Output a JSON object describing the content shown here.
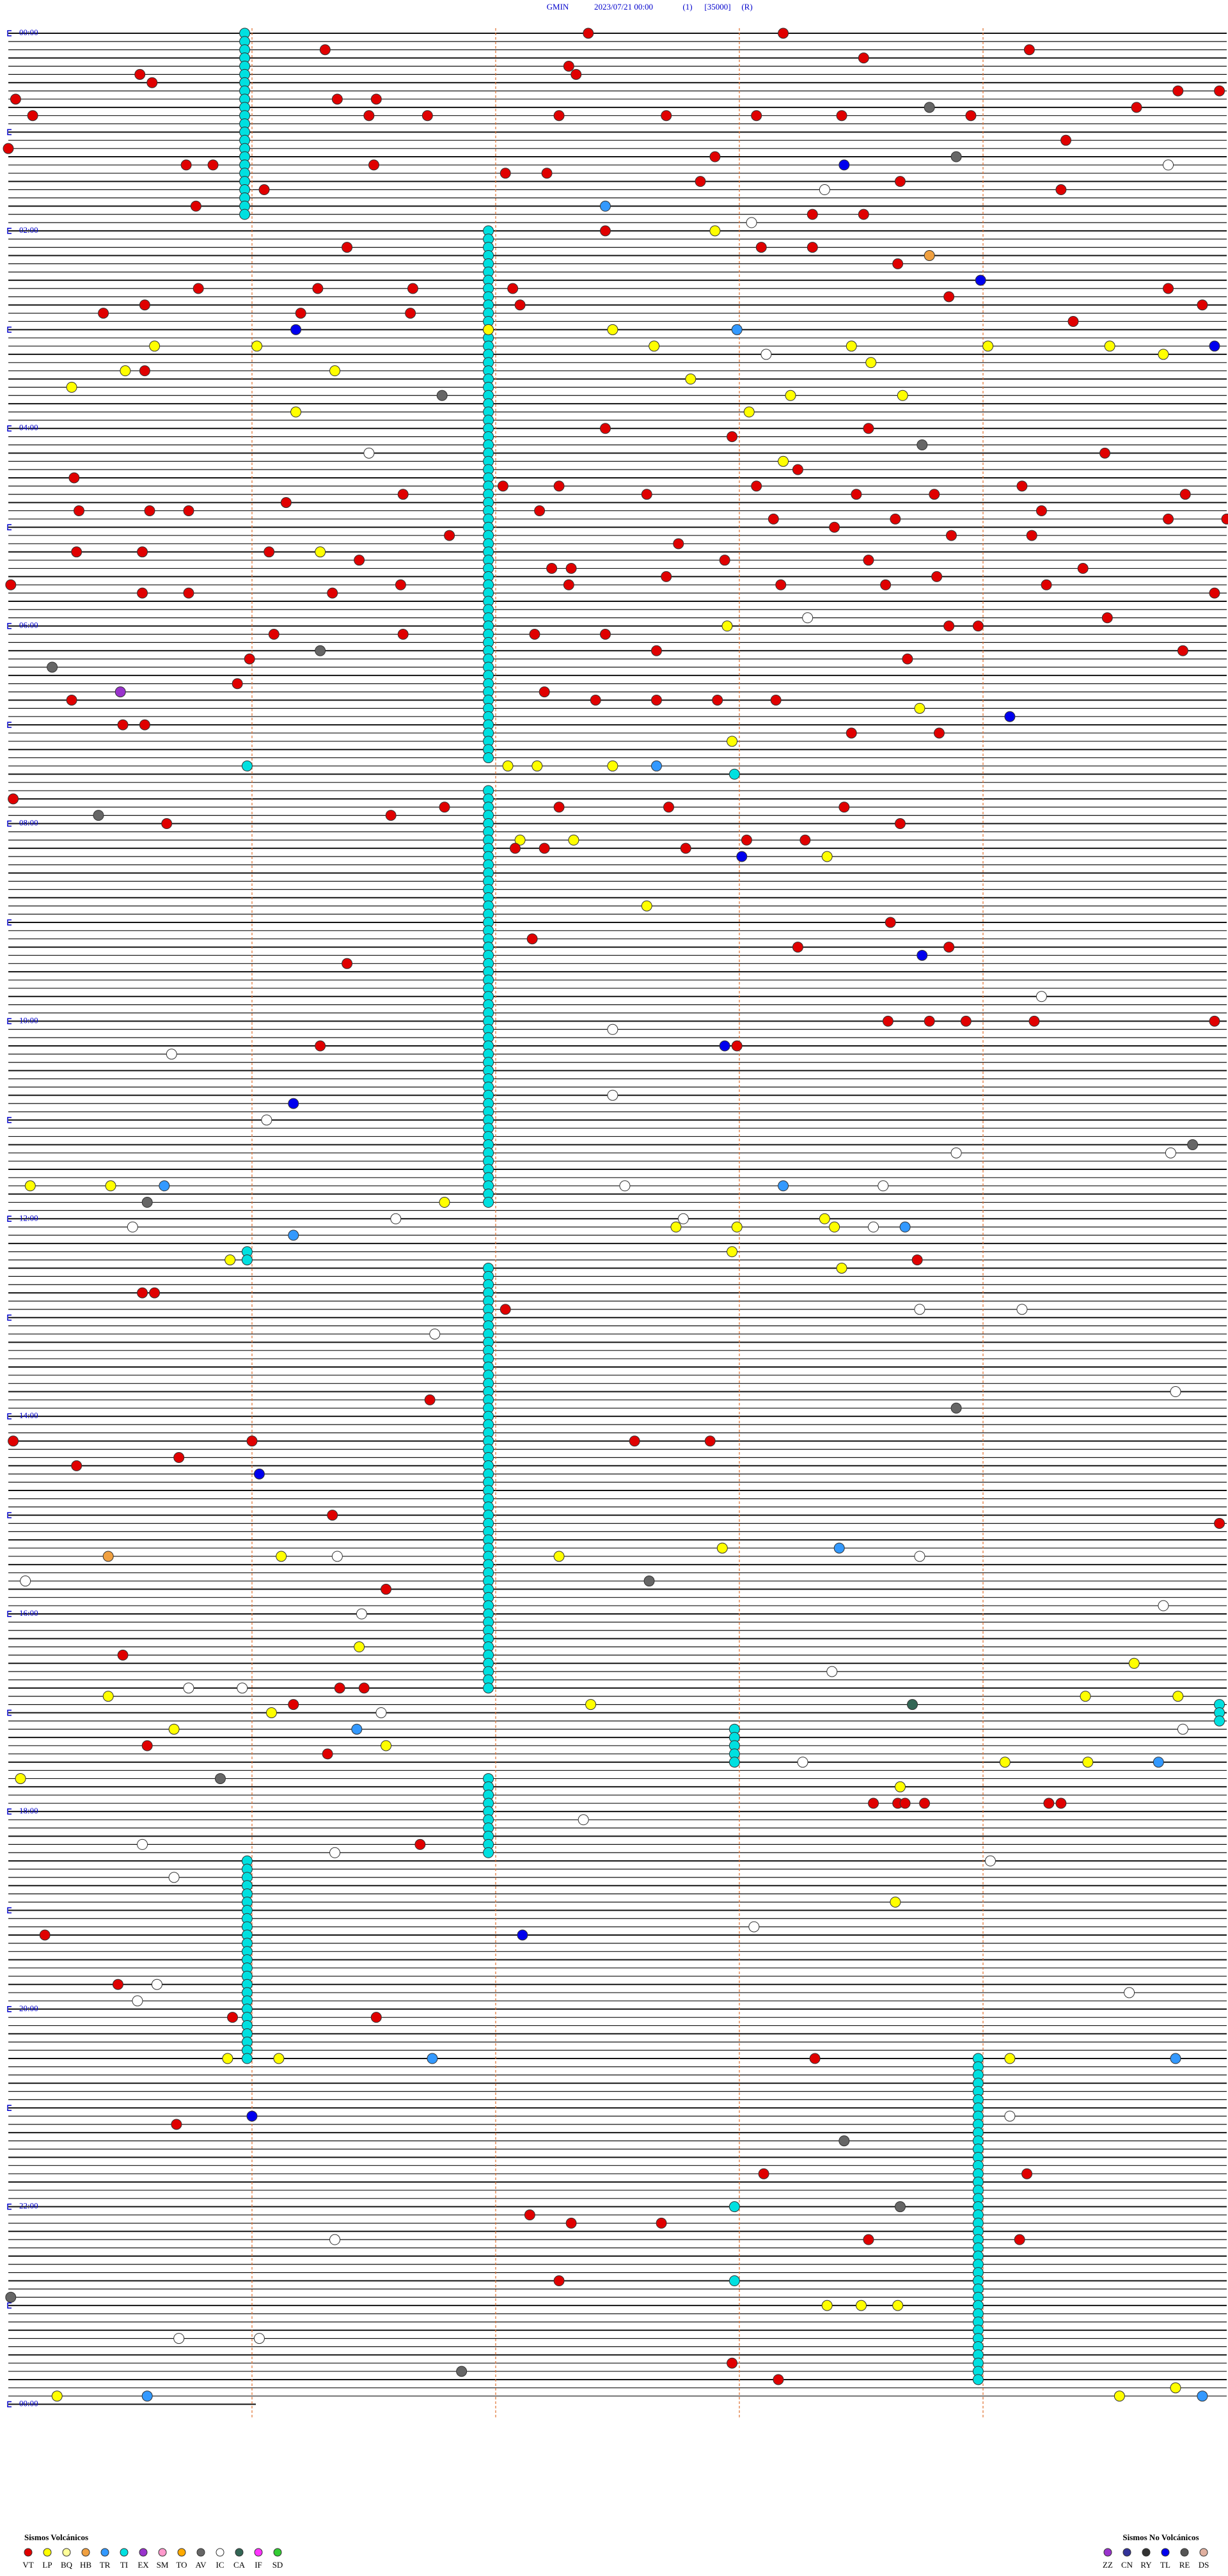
{
  "header": {
    "station": "GMIN",
    "datetime": "2023/07/21 00:00",
    "channel": "(1)",
    "scale": "[35000]",
    "mode": "(R)"
  },
  "time_labels": [
    "00:00",
    "02:00",
    "04:00",
    "06:00",
    "08:00",
    "10:00",
    "12:00",
    "14:00",
    "16:00",
    "18:00",
    "20:00",
    "22:00",
    "00:00"
  ],
  "legend_volcanic": {
    "title": "Sismos Volcánicos",
    "items": [
      [
        "VT",
        "#e00000"
      ],
      [
        "LP",
        "#ffff00"
      ],
      [
        "BQ",
        "#ffff99"
      ],
      [
        "HB",
        "#f0a040"
      ],
      [
        "TR",
        "#3399ff"
      ],
      [
        "TI",
        "#00e0e0"
      ],
      [
        "EX",
        "#9933cc"
      ],
      [
        "SM",
        "#ff99cc"
      ],
      [
        "TO",
        "#ffaa00"
      ],
      [
        "AV",
        "#666666"
      ],
      [
        "IC",
        "#ffffff"
      ],
      [
        "CA",
        "#336655"
      ],
      [
        "IF",
        "#ff33ff"
      ],
      [
        "SD",
        "#33cc33"
      ]
    ]
  },
  "legend_non_volcanic": {
    "title": "Sismos No Volcánicos",
    "items": [
      [
        "ZZ",
        "#9933cc"
      ],
      [
        "CN",
        "#333399"
      ],
      [
        "RY",
        "#333333"
      ],
      [
        "TL",
        "#0000ee"
      ],
      [
        "RE",
        "#555555"
      ],
      [
        "DS",
        "#e0b0a0"
      ]
    ]
  },
  "ti_runs": [
    [
      0,
      22,
      0.97
    ],
    [
      24,
      88,
      1.97
    ],
    [
      92,
      142,
      1.97
    ],
    [
      148,
      149,
      0.98
    ],
    [
      150,
      201,
      1.97
    ],
    [
      203,
      205,
      4.97
    ],
    [
      206,
      210,
      2.98
    ],
    [
      212,
      221,
      1.97
    ],
    [
      222,
      246,
      0.98
    ],
    [
      246,
      285,
      3.98
    ]
  ],
  "events": [
    [
      0,
      2.38,
      "VT"
    ],
    [
      0,
      3.18,
      "VT"
    ],
    [
      2,
      1.3,
      "VT"
    ],
    [
      2,
      4.19,
      "VT"
    ],
    [
      3,
      3.51,
      "VT"
    ],
    [
      4,
      2.3,
      "VT"
    ],
    [
      5,
      2.33,
      "VT"
    ],
    [
      5,
      0.54,
      "VT"
    ],
    [
      6,
      0.59,
      "VT"
    ],
    [
      8,
      0.03,
      "VT"
    ],
    [
      8,
      1.35,
      "VT"
    ],
    [
      8,
      1.51,
      "VT"
    ],
    [
      7,
      4.8,
      "VT"
    ],
    [
      7,
      4.97,
      "VT"
    ],
    [
      10,
      0.1,
      "VT"
    ],
    [
      10,
      1.48,
      "VT"
    ],
    [
      10,
      1.72,
      "VT"
    ],
    [
      10,
      2.26,
      "VT"
    ],
    [
      10,
      2.7,
      "VT"
    ],
    [
      10,
      3.07,
      "VT"
    ],
    [
      10,
      3.42,
      "VT"
    ],
    [
      10,
      3.95,
      "VT"
    ],
    [
      9,
      4.63,
      "VT"
    ],
    [
      9,
      3.78,
      "AV"
    ],
    [
      13,
      4.34,
      "VT"
    ],
    [
      14,
      0,
      "VT"
    ],
    [
      15,
      2.9,
      "VT"
    ],
    [
      15,
      3.89,
      "AV"
    ],
    [
      16,
      3.43,
      "TL"
    ],
    [
      16,
      4.76,
      "IC"
    ],
    [
      16,
      0.73,
      "VT"
    ],
    [
      16,
      0.84,
      "VT"
    ],
    [
      16,
      1.5,
      "VT"
    ],
    [
      17,
      2.04,
      "VT"
    ],
    [
      17,
      2.21,
      "VT"
    ],
    [
      18,
      3.66,
      "VT"
    ],
    [
      18,
      2.84,
      "VT"
    ],
    [
      19,
      3.35,
      "IC"
    ],
    [
      19,
      4.32,
      "VT"
    ],
    [
      19,
      1.05,
      "VT"
    ],
    [
      21,
      0.77,
      "VT"
    ],
    [
      21,
      2.45,
      "TR"
    ],
    [
      23,
      3.05,
      "IC"
    ],
    [
      22,
      3.3,
      "VT"
    ],
    [
      22,
      3.51,
      "VT"
    ],
    [
      24,
      2.9,
      "LP"
    ],
    [
      24,
      2.45,
      "VT"
    ],
    [
      26,
      1.39,
      "VT"
    ],
    [
      26,
      3.09,
      "VT"
    ],
    [
      26,
      3.3,
      "VT"
    ],
    [
      27,
      3.78,
      "HB"
    ],
    [
      28,
      3.65,
      "VT"
    ],
    [
      30,
      3.99,
      "TL"
    ],
    [
      31,
      0.78,
      "VT"
    ],
    [
      31,
      1.27,
      "VT"
    ],
    [
      31,
      1.66,
      "VT"
    ],
    [
      31,
      2.07,
      "VT"
    ],
    [
      32,
      3.86,
      "VT"
    ],
    [
      31,
      4.76,
      "VT"
    ],
    [
      34,
      0.39,
      "VT"
    ],
    [
      33,
      0.56,
      "VT"
    ],
    [
      34,
      1.2,
      "VT"
    ],
    [
      34,
      1.65,
      "VT"
    ],
    [
      33,
      2.1,
      "VT"
    ],
    [
      35,
      4.37,
      "VT"
    ],
    [
      33,
      4.9,
      "VT"
    ],
    [
      36,
      1.18,
      "TL"
    ],
    [
      36,
      1.97,
      "LP"
    ],
    [
      36,
      2.48,
      "LP"
    ],
    [
      36,
      2.99,
      "TR"
    ],
    [
      38,
      4.95,
      "TL"
    ],
    [
      38,
      0.6,
      "LP"
    ],
    [
      38,
      1.02,
      "LP"
    ],
    [
      38,
      2.65,
      "LP"
    ],
    [
      38,
      3.46,
      "LP"
    ],
    [
      38,
      4.02,
      "LP"
    ],
    [
      38,
      4.52,
      "LP"
    ],
    [
      43,
      0.26,
      "LP"
    ],
    [
      41,
      0.48,
      "LP"
    ],
    [
      41,
      0.56,
      "VT"
    ],
    [
      41,
      1.34,
      "LP"
    ],
    [
      42,
      2.8,
      "LP"
    ],
    [
      40,
      3.54,
      "LP"
    ],
    [
      39,
      4.74,
      "LP"
    ],
    [
      44,
      1.78,
      "AV"
    ],
    [
      39,
      3.11,
      "IC"
    ],
    [
      46,
      1.18,
      "LP"
    ],
    [
      46,
      3.04,
      "LP"
    ],
    [
      44,
      3.67,
      "LP"
    ],
    [
      44,
      3.21,
      "LP"
    ],
    [
      48,
      2.45,
      "VT"
    ],
    [
      49,
      2.97,
      "VT"
    ],
    [
      48,
      3.53,
      "VT"
    ],
    [
      51,
      4.5,
      "VT"
    ],
    [
      51,
      1.48,
      "IC"
    ],
    [
      50,
      3.75,
      "AV"
    ],
    [
      52,
      3.18,
      "LP"
    ],
    [
      53,
      3.24,
      "VT"
    ],
    [
      54,
      0.27,
      "VT"
    ],
    [
      56,
      1.62,
      "VT"
    ],
    [
      55,
      2.03,
      "VT"
    ],
    [
      55,
      2.26,
      "VT"
    ],
    [
      56,
      2.62,
      "VT"
    ],
    [
      55,
      3.07,
      "VT"
    ],
    [
      56,
      3.48,
      "VT"
    ],
    [
      56,
      3.8,
      "VT"
    ],
    [
      55,
      4.16,
      "VT"
    ],
    [
      56,
      4.83,
      "VT"
    ],
    [
      58,
      0.29,
      "VT"
    ],
    [
      58,
      0.58,
      "VT"
    ],
    [
      58,
      0.74,
      "VT"
    ],
    [
      57,
      1.14,
      "VT"
    ],
    [
      58,
      2.18,
      "VT"
    ],
    [
      59,
      3.14,
      "VT"
    ],
    [
      59,
      3.64,
      "VT"
    ],
    [
      58,
      4.24,
      "VT"
    ],
    [
      59,
      5,
      "VT"
    ],
    [
      63,
      1.28,
      "LP"
    ],
    [
      61,
      1.81,
      "VT"
    ],
    [
      62,
      2.75,
      "VT"
    ],
    [
      60,
      3.39,
      "VT"
    ],
    [
      61,
      3.87,
      "VT"
    ],
    [
      61,
      4.2,
      "VT"
    ],
    [
      59,
      4.76,
      "VT"
    ],
    [
      67,
      0.01,
      "VT"
    ],
    [
      63,
      0.28,
      "VT"
    ],
    [
      63,
      0.55,
      "VT"
    ],
    [
      63,
      1.07,
      "VT"
    ],
    [
      64,
      1.44,
      "VT"
    ],
    [
      65,
      2.23,
      "VT"
    ],
    [
      65,
      2.31,
      "VT"
    ],
    [
      64,
      2.94,
      "VT"
    ],
    [
      64,
      3.53,
      "VT"
    ],
    [
      66,
      3.81,
      "VT"
    ],
    [
      65,
      4.41,
      "VT"
    ],
    [
      68,
      0.55,
      "VT"
    ],
    [
      68,
      0.74,
      "VT"
    ],
    [
      68,
      1.33,
      "VT"
    ],
    [
      67,
      1.61,
      "VT"
    ],
    [
      67,
      2.3,
      "VT"
    ],
    [
      66,
      2.7,
      "VT"
    ],
    [
      67,
      3.17,
      "VT"
    ],
    [
      67,
      3.6,
      "VT"
    ],
    [
      67,
      4.26,
      "VT"
    ],
    [
      68,
      4.95,
      "VT"
    ],
    [
      72,
      2.95,
      "LP"
    ],
    [
      71,
      3.28,
      "IC"
    ],
    [
      72,
      3.86,
      "VT"
    ],
    [
      72,
      3.98,
      "VT"
    ],
    [
      71,
      4.51,
      "VT"
    ],
    [
      73,
      1.09,
      "VT"
    ],
    [
      73,
      1.62,
      "VT"
    ],
    [
      73,
      2.16,
      "VT"
    ],
    [
      73,
      2.45,
      "VT"
    ],
    [
      75,
      2.66,
      "VT"
    ],
    [
      77,
      0.18,
      "AV"
    ],
    [
      75,
      1.28,
      "AV"
    ],
    [
      76,
      0.99,
      "VT"
    ],
    [
      76,
      3.69,
      "VT"
    ],
    [
      75,
      4.82,
      "VT"
    ],
    [
      80,
      0.46,
      "EX"
    ],
    [
      79,
      0.94,
      "VT"
    ],
    [
      80,
      2.2,
      "VT"
    ],
    [
      82,
      3.74,
      "LP"
    ],
    [
      83,
      4.11,
      "TL"
    ],
    [
      81,
      0.26,
      "VT"
    ],
    [
      84,
      0.47,
      "VT"
    ],
    [
      84,
      0.56,
      "VT"
    ],
    [
      81,
      2.41,
      "VT"
    ],
    [
      81,
      2.66,
      "VT"
    ],
    [
      81,
      2.91,
      "VT"
    ],
    [
      81,
      3.15,
      "VT"
    ],
    [
      85,
      3.46,
      "VT"
    ],
    [
      85,
      3.82,
      "VT"
    ],
    [
      86,
      2.97,
      "LP"
    ],
    [
      89,
      0.98,
      "TI"
    ],
    [
      89,
      2.05,
      "LP"
    ],
    [
      89,
      2.17,
      "LP"
    ],
    [
      89,
      2.48,
      "LP"
    ],
    [
      89,
      2.66,
      "TR"
    ],
    [
      90,
      2.98,
      "TI"
    ],
    [
      93,
      0.02,
      "VT"
    ],
    [
      94,
      1.79,
      "VT"
    ],
    [
      94,
      2.26,
      "VT"
    ],
    [
      94,
      2.71,
      "VT"
    ],
    [
      94,
      3.43,
      "VT"
    ],
    [
      95,
      0.37,
      "AV"
    ],
    [
      96,
      0.65,
      "VT"
    ],
    [
      95,
      1.57,
      "VT"
    ],
    [
      96,
      3.66,
      "VT"
    ],
    [
      98,
      2.1,
      "LP"
    ],
    [
      98,
      2.32,
      "LP"
    ],
    [
      99,
      2.08,
      "VT"
    ],
    [
      99,
      2.2,
      "VT"
    ],
    [
      99,
      2.78,
      "VT"
    ],
    [
      98,
      3.03,
      "VT"
    ],
    [
      98,
      3.27,
      "VT"
    ],
    [
      100,
      3.01,
      "TL"
    ],
    [
      100,
      3.36,
      "LP"
    ],
    [
      106,
      2.62,
      "LP"
    ],
    [
      108,
      3.62,
      "VT"
    ],
    [
      110,
      2.15,
      "VT"
    ],
    [
      111,
      3.24,
      "VT"
    ],
    [
      111,
      3.86,
      "VT"
    ],
    [
      112,
      3.75,
      "TL"
    ],
    [
      113,
      1.39,
      "VT"
    ],
    [
      117,
      4.24,
      "IC"
    ],
    [
      121,
      2.48,
      "IC"
    ],
    [
      120,
      3.61,
      "VT"
    ],
    [
      120,
      3.78,
      "VT"
    ],
    [
      120,
      3.93,
      "VT"
    ],
    [
      120,
      4.21,
      "VT"
    ],
    [
      120,
      4.95,
      "VT"
    ],
    [
      124,
      0.67,
      "IC"
    ],
    [
      123,
      1.28,
      "VT"
    ],
    [
      123,
      2.94,
      "TL"
    ],
    [
      123,
      2.99,
      "VT"
    ],
    [
      129,
      2.48,
      "IC"
    ],
    [
      130,
      1.17,
      "TL"
    ],
    [
      132,
      1.06,
      "IC"
    ],
    [
      136,
      3.89,
      "IC"
    ],
    [
      135,
      4.86,
      "AV"
    ],
    [
      136,
      4.77,
      "IC"
    ],
    [
      140,
      0.09,
      "LP"
    ],
    [
      140,
      0.42,
      "LP"
    ],
    [
      140,
      0.64,
      "TR"
    ],
    [
      140,
      2.53,
      "IC"
    ],
    [
      140,
      3.18,
      "TR"
    ],
    [
      140,
      3.59,
      "IC"
    ],
    [
      142,
      0.57,
      "AV"
    ],
    [
      142,
      1.79,
      "LP"
    ],
    [
      144,
      1.59,
      "IC"
    ],
    [
      145,
      0.51,
      "IC"
    ],
    [
      145,
      2.74,
      "LP"
    ],
    [
      144,
      2.77,
      "IC"
    ],
    [
      145,
      2.99,
      "LP"
    ],
    [
      144,
      3.35,
      "LP"
    ],
    [
      145,
      3.39,
      "LP"
    ],
    [
      145,
      3.55,
      "IC"
    ],
    [
      145,
      3.68,
      "TR"
    ],
    [
      146,
      1.17,
      "TR"
    ],
    [
      149,
      0.91,
      "LP"
    ],
    [
      148,
      2.97,
      "LP"
    ],
    [
      149,
      3.73,
      "VT"
    ],
    [
      150,
      3.42,
      "LP"
    ],
    [
      153,
      0.55,
      "VT"
    ],
    [
      153,
      0.6,
      "VT"
    ],
    [
      155,
      2.04,
      "VT"
    ],
    [
      155,
      3.74,
      "IC"
    ],
    [
      155,
      4.16,
      "IC"
    ],
    [
      158,
      1.75,
      "IC"
    ],
    [
      166,
      1.73,
      "VT"
    ],
    [
      165,
      4.79,
      "IC"
    ],
    [
      167,
      3.89,
      "AV"
    ],
    [
      171,
      0.02,
      "VT"
    ],
    [
      171,
      1,
      "VT"
    ],
    [
      171,
      2.57,
      "VT"
    ],
    [
      171,
      2.88,
      "VT"
    ],
    [
      173,
      0.7,
      "VT"
    ],
    [
      174,
      0.28,
      "VT"
    ],
    [
      175,
      1.03,
      "TL"
    ],
    [
      180,
      1.33,
      "VT"
    ],
    [
      181,
      4.97,
      "VT"
    ],
    [
      185,
      0.41,
      "HB"
    ],
    [
      185,
      1.12,
      "LP"
    ],
    [
      185,
      1.35,
      "IC"
    ],
    [
      185,
      2.26,
      "LP"
    ],
    [
      184,
      2.93,
      "LP"
    ],
    [
      184,
      3.41,
      "TR"
    ],
    [
      185,
      3.74,
      "IC"
    ],
    [
      188,
      0.07,
      "IC"
    ],
    [
      188,
      2.63,
      "AV"
    ],
    [
      189,
      1.55,
      "VT"
    ],
    [
      191,
      4.74,
      "IC"
    ],
    [
      192,
      1.45,
      "IC"
    ],
    [
      196,
      1.44,
      "LP"
    ],
    [
      197,
      0.47,
      "VT"
    ],
    [
      198,
      4.62,
      "LP"
    ],
    [
      199,
      3.38,
      "IC"
    ],
    [
      201,
      0.74,
      "IC"
    ],
    [
      201,
      0.96,
      "IC"
    ],
    [
      201,
      1.36,
      "VT"
    ],
    [
      201,
      1.46,
      "VT"
    ],
    [
      202,
      0.41,
      "LP"
    ],
    [
      203,
      2.39,
      "LP"
    ],
    [
      203,
      3.71,
      "CA"
    ],
    [
      202,
      4.42,
      "LP"
    ],
    [
      202,
      4.8,
      "LP"
    ],
    [
      203,
      1.17,
      "VT"
    ],
    [
      204,
      1.08,
      "LP"
    ],
    [
      204,
      1.53,
      "IC"
    ],
    [
      206,
      0.68,
      "LP"
    ],
    [
      206,
      1.43,
      "TR"
    ],
    [
      206,
      4.82,
      "IC"
    ],
    [
      208,
      0.57,
      "VT"
    ],
    [
      208,
      1.55,
      "LP"
    ],
    [
      209,
      1.31,
      "VT"
    ],
    [
      210,
      4.09,
      "LP"
    ],
    [
      210,
      4.43,
      "LP"
    ],
    [
      210,
      4.72,
      "TR"
    ],
    [
      210,
      3.26,
      "IC"
    ],
    [
      212,
      0.05,
      "LP"
    ],
    [
      212,
      0.87,
      "AV"
    ],
    [
      213,
      3.66,
      "LP"
    ],
    [
      215,
      3.55,
      "VT"
    ],
    [
      215,
      3.65,
      "VT"
    ],
    [
      215,
      3.68,
      "VT"
    ],
    [
      215,
      3.76,
      "VT"
    ],
    [
      215,
      4.27,
      "VT"
    ],
    [
      215,
      4.32,
      "VT"
    ],
    [
      217,
      2.36,
      "IC"
    ],
    [
      220,
      0.55,
      "IC"
    ],
    [
      221,
      1.34,
      "IC"
    ],
    [
      220,
      1.69,
      "VT"
    ],
    [
      222,
      4.03,
      "IC"
    ],
    [
      224,
      0.68,
      "IC"
    ],
    [
      227,
      3.64,
      "LP"
    ],
    [
      230,
      3.06,
      "IC"
    ],
    [
      231,
      0.15,
      "VT"
    ],
    [
      231,
      2.11,
      "TL"
    ],
    [
      237,
      0.61,
      "IC"
    ],
    [
      237,
      0.45,
      "VT"
    ],
    [
      239,
      0.53,
      "IC"
    ],
    [
      241,
      1.51,
      "VT"
    ],
    [
      241,
      0.92,
      "VT"
    ],
    [
      238,
      4.6,
      "IC"
    ],
    [
      246,
      0.9,
      "LP"
    ],
    [
      246,
      1.11,
      "LP"
    ],
    [
      246,
      1.74,
      "TR"
    ],
    [
      246,
      3.31,
      "VT"
    ],
    [
      246,
      4.11,
      "LP"
    ],
    [
      246,
      4.79,
      "TR"
    ],
    [
      253,
      1,
      "TL"
    ],
    [
      254,
      0.69,
      "VT"
    ],
    [
      253,
      4.11,
      "IC"
    ],
    [
      256,
      3.43,
      "AV"
    ],
    [
      260,
      3.1,
      "VT"
    ],
    [
      260,
      4.18,
      "VT"
    ],
    [
      264,
      2.98,
      "TI"
    ],
    [
      264,
      3.66,
      "AV"
    ],
    [
      265,
      2.14,
      "VT"
    ],
    [
      266,
      2.31,
      "VT"
    ],
    [
      266,
      2.68,
      "VT"
    ],
    [
      268,
      3.53,
      "VT"
    ],
    [
      268,
      4.15,
      "VT"
    ],
    [
      268,
      1.34,
      "IC"
    ],
    [
      273,
      2.26,
      "VT"
    ],
    [
      273,
      2.98,
      "TI"
    ],
    [
      275,
      0.01,
      "AV"
    ],
    [
      276,
      3.36,
      "LP"
    ],
    [
      276,
      3.5,
      "LP"
    ],
    [
      276,
      3.65,
      "LP"
    ],
    [
      280,
      0.7,
      "IC"
    ],
    [
      280,
      1.03,
      "IC"
    ],
    [
      284,
      1.86,
      "AV"
    ],
    [
      283,
      2.97,
      "VT"
    ],
    [
      285,
      3.16,
      "VT"
    ],
    [
      287,
      0.2,
      "LP"
    ],
    [
      287,
      0.57,
      "TR"
    ],
    [
      287,
      4.56,
      "LP"
    ],
    [
      286,
      4.79,
      "LP"
    ],
    [
      287,
      4.9,
      "TR"
    ]
  ]
}
